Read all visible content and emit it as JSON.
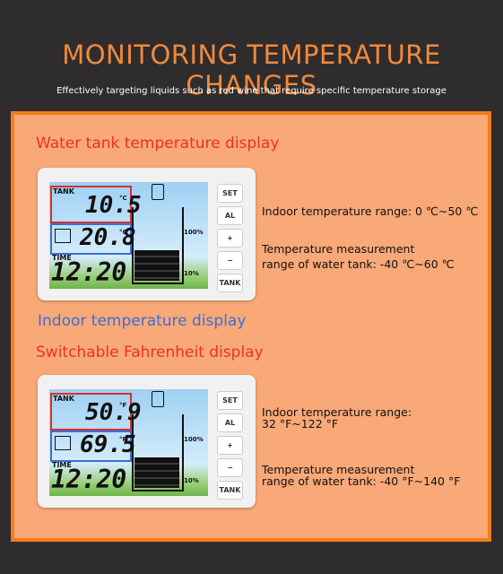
{
  "header": {
    "title": "MONITORING TEMPERATURE CHANGES",
    "subtitle": "Effectively targeting liquids such as red wine that require specific temperature storage"
  },
  "sections": [
    {
      "label": "Water tank temperature display",
      "label2": "Indoor temperature display",
      "device": {
        "tank_label": "TANK",
        "tank_temp": "10.5",
        "tank_unit": "°C",
        "indoor_temp": "20.8",
        "indoor_unit": "°C",
        "time_label": "TIME",
        "time": "12:20",
        "level_high": "100%",
        "level_low": "10%",
        "buttons": [
          "SET",
          "AL",
          "+",
          "−",
          "TANK"
        ]
      },
      "specs": [
        "Indoor temperature range: 0 ℃~50 ℃",
        "Temperature measurement",
        " range of water tank: -40 ℃~60 ℃"
      ]
    },
    {
      "label": "Switchable Fahrenheit display",
      "device": {
        "tank_label": "TANK",
        "tank_temp": "50.9",
        "tank_unit": "°F",
        "indoor_temp": "69.5",
        "indoor_unit": "°F",
        "time_label": "TIME",
        "time": "12:20",
        "level_high": "100%",
        "level_low": "10%",
        "buttons": [
          "SET",
          "AL",
          "+",
          "−",
          "TANK"
        ]
      },
      "specs": [
        "Indoor temperature range:",
        "32 °F~122 °F",
        "Temperature measurement",
        "range of water tank: -40 °F~140 °F"
      ]
    }
  ]
}
